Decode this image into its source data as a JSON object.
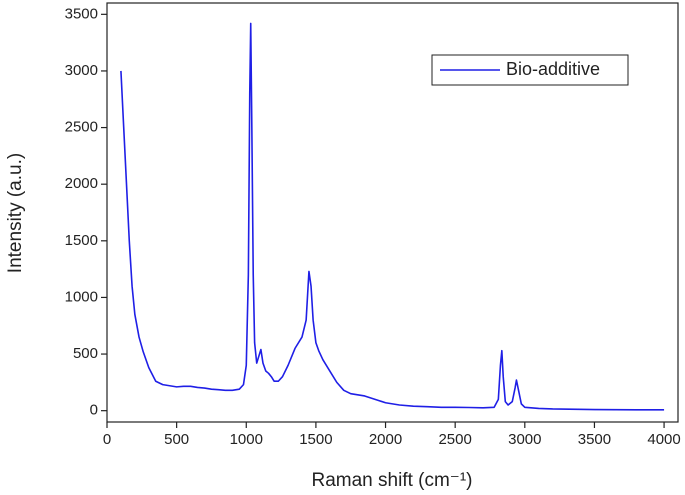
{
  "chart_data": {
    "type": "line",
    "x_label": "Raman shift (cm⁻¹)",
    "y_label": "Intensity (a.u.)",
    "xlim": [
      0,
      4100
    ],
    "ylim": [
      -100,
      3600
    ],
    "xticks": [
      0,
      500,
      1000,
      1500,
      2000,
      2500,
      3000,
      3500,
      4000
    ],
    "yticks": [
      0,
      500,
      1000,
      1500,
      2000,
      2500,
      3000,
      3500
    ],
    "legend": "top-right",
    "x": [
      100,
      120,
      140,
      160,
      180,
      200,
      230,
      260,
      300,
      350,
      400,
      450,
      500,
      550,
      600,
      650,
      700,
      750,
      800,
      850,
      900,
      950,
      980,
      1000,
      1015,
      1025,
      1032,
      1040,
      1050,
      1060,
      1075,
      1090,
      1105,
      1120,
      1140,
      1160,
      1180,
      1200,
      1230,
      1260,
      1300,
      1350,
      1400,
      1430,
      1450,
      1465,
      1480,
      1500,
      1520,
      1550,
      1600,
      1650,
      1700,
      1750,
      1800,
      1850,
      1900,
      1950,
      2000,
      2100,
      2200,
      2300,
      2400,
      2500,
      2600,
      2700,
      2780,
      2810,
      2825,
      2835,
      2845,
      2860,
      2880,
      2910,
      2930,
      2940,
      2955,
      2975,
      3000,
      3100,
      3200,
      3500,
      3800,
      4000
    ],
    "series": [
      {
        "name": "Bio-additive",
        "color": "#1f1fe6",
        "values": [
          3000,
          2500,
          2000,
          1500,
          1100,
          850,
          650,
          520,
          380,
          260,
          230,
          220,
          210,
          215,
          215,
          205,
          200,
          190,
          185,
          180,
          180,
          190,
          230,
          400,
          1200,
          2800,
          3420,
          2500,
          1200,
          600,
          420,
          480,
          540,
          420,
          350,
          330,
          300,
          260,
          260,
          300,
          400,
          550,
          650,
          800,
          1230,
          1100,
          800,
          600,
          530,
          450,
          350,
          250,
          180,
          150,
          140,
          130,
          110,
          90,
          70,
          50,
          40,
          35,
          30,
          30,
          28,
          25,
          30,
          100,
          400,
          530,
          300,
          80,
          50,
          80,
          200,
          270,
          180,
          60,
          30,
          20,
          15,
          10,
          8,
          8
        ]
      }
    ]
  }
}
